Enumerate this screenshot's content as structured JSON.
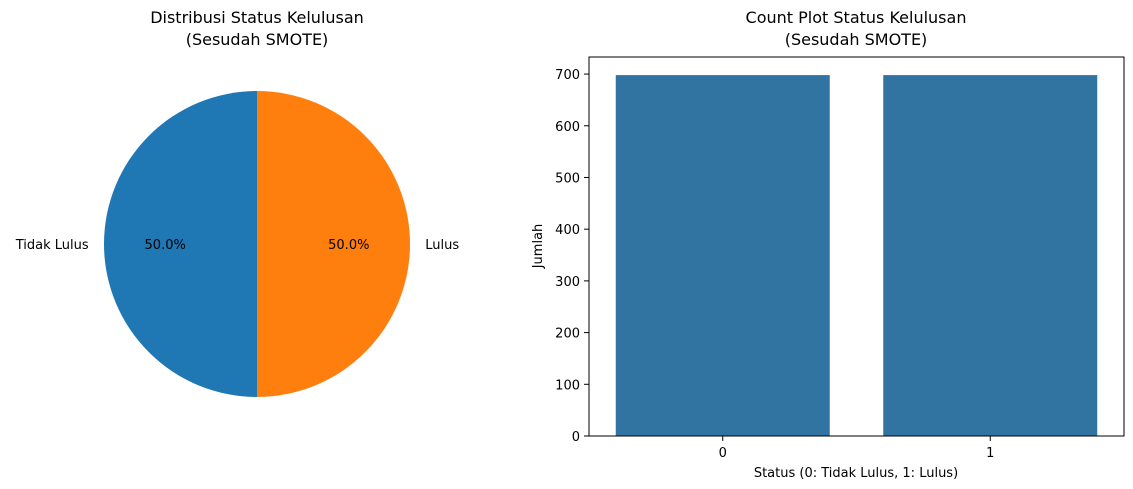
{
  "chart_data": [
    {
      "type": "pie",
      "title_line1": "Distribusi Status Kelulusan",
      "title_line2": "(Sesudah SMOTE)",
      "labels": [
        "Tidak Lulus",
        "Lulus"
      ],
      "values": [
        50.0,
        50.0
      ],
      "pct_labels": [
        "50.0%",
        "50.0%"
      ],
      "colors": [
        "#1f77b4",
        "#ff7f0e"
      ]
    },
    {
      "type": "bar",
      "title_line1": "Count Plot Status Kelulusan",
      "title_line2": "(Sesudah SMOTE)",
      "categories": [
        "0",
        "1"
      ],
      "values": [
        698,
        698
      ],
      "xlabel": "Status (0: Tidak Lulus, 1: Lulus)",
      "ylabel": "Jumlah",
      "ylim": [
        0,
        733
      ],
      "yticks": [
        "0",
        "100",
        "200",
        "300",
        "400",
        "500",
        "600",
        "700"
      ],
      "bar_color": "#3274a1",
      "grid": false
    }
  ]
}
